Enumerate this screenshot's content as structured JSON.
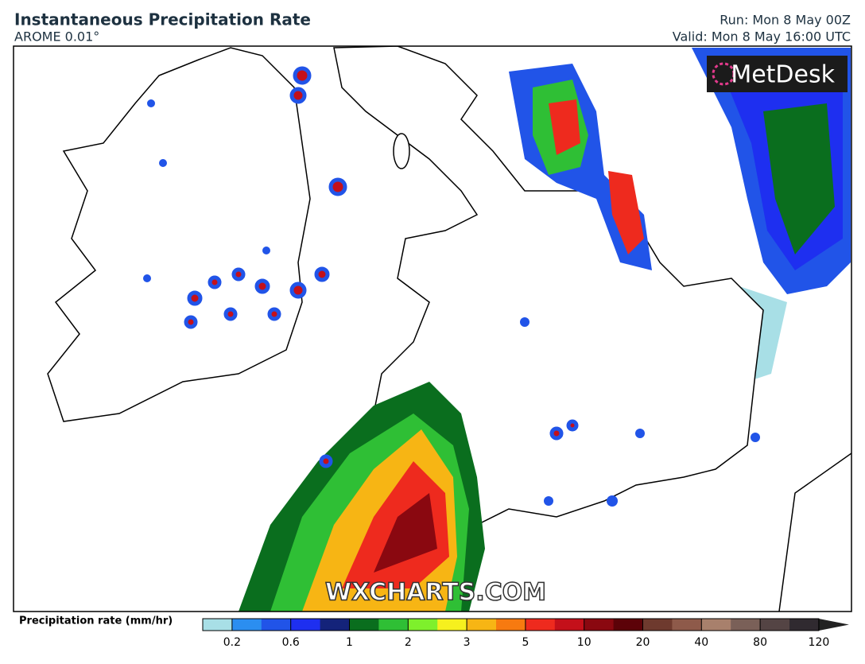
{
  "header": {
    "title": "Instantaneous Precipitation Rate",
    "model": "AROME 0.01°",
    "run": "Run: Mon 8 May 00Z",
    "valid": "Valid: Mon 8 May 16:00 UTC"
  },
  "logo": "MetDesk",
  "watermark": "WXCHARTS.COM",
  "legend": {
    "label": "Precipitation rate (mm/hr)",
    "colors": [
      "#a8dfe6",
      "#2b8ef0",
      "#2154e8",
      "#1e2ff0",
      "#14237a",
      "#0a6e1e",
      "#2fbf35",
      "#7ef02c",
      "#f6f01e",
      "#f7b514",
      "#f77a10",
      "#ee2a1e",
      "#c4101a",
      "#8a0810",
      "#5c0208",
      "#6e3a2e",
      "#8e5a4a",
      "#a8806c",
      "#7a6058",
      "#544444",
      "#302a30"
    ],
    "ticks": [
      0.2,
      0.6,
      1,
      2,
      3,
      5,
      10,
      20,
      40,
      80,
      120
    ]
  }
}
